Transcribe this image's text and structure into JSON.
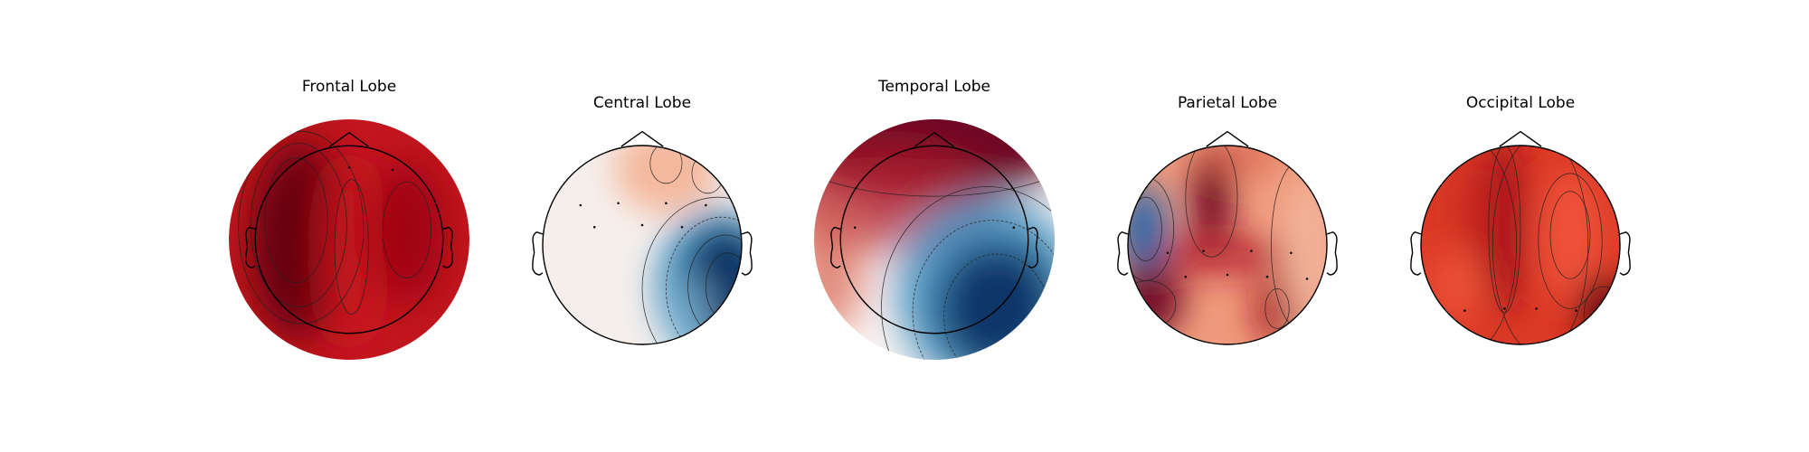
{
  "chart_data": {
    "type": "heatmap",
    "subtype": "scalp-topomap",
    "colormap": "RdBu_r",
    "panels": [
      {
        "title": "Frontal Lobe",
        "colors": {
          "base": "#b2182b",
          "bg": "#c2161f"
        },
        "blobs": [
          {
            "cx": 0.3,
            "cy": 0.5,
            "rx": 0.2,
            "ry": 0.42,
            "color": "#67000d",
            "opacity": 0.95
          },
          {
            "cx": 0.5,
            "cy": 0.55,
            "rx": 0.12,
            "ry": 0.4,
            "color": "#cb181d",
            "opacity": 0.9
          },
          {
            "cx": 0.74,
            "cy": 0.47,
            "rx": 0.16,
            "ry": 0.3,
            "color": "#99000d",
            "opacity": 0.85
          },
          {
            "cx": 0.22,
            "cy": 0.55,
            "rx": 0.12,
            "ry": 0.3,
            "color": "#5a0009",
            "opacity": 0.7
          }
        ],
        "contours": [
          {
            "cx": 0.3,
            "cy": 0.45,
            "rx": 0.26,
            "ry": 0.4
          },
          {
            "cx": 0.29,
            "cy": 0.44,
            "rx": 0.2,
            "ry": 0.34
          },
          {
            "cx": 0.28,
            "cy": 0.42,
            "rx": 0.13,
            "ry": 0.26
          },
          {
            "cx": 0.51,
            "cy": 0.53,
            "rx": 0.07,
            "ry": 0.28
          },
          {
            "cx": 0.74,
            "cy": 0.46,
            "rx": 0.1,
            "ry": 0.2
          }
        ],
        "sensors": [
          [
            0.5,
            0.2
          ],
          [
            0.68,
            0.21
          ]
        ],
        "head_scale": 0.78
      },
      {
        "title": "Central Lobe",
        "colors": {
          "base": "#f5efec",
          "bg": "#f5efec"
        },
        "blobs": [
          {
            "cx": 0.62,
            "cy": 0.12,
            "rx": 0.26,
            "ry": 0.22,
            "color": "#f4a582",
            "opacity": 0.75
          },
          {
            "cx": 0.88,
            "cy": 0.72,
            "rx": 0.32,
            "ry": 0.4,
            "color": "#4393c3",
            "opacity": 0.9
          },
          {
            "cx": 0.92,
            "cy": 0.7,
            "rx": 0.22,
            "ry": 0.3,
            "color": "#053061",
            "opacity": 0.95
          },
          {
            "cx": 0.75,
            "cy": 0.85,
            "rx": 0.12,
            "ry": 0.2,
            "color": "#92c5de",
            "opacity": 0.6
          }
        ],
        "contours": [
          {
            "cx": 0.88,
            "cy": 0.72,
            "rx": 0.38,
            "ry": 0.46
          },
          {
            "cx": 0.9,
            "cy": 0.72,
            "rx": 0.28,
            "ry": 0.36,
            "dashed": true
          },
          {
            "cx": 0.92,
            "cy": 0.71,
            "rx": 0.19,
            "ry": 0.26
          },
          {
            "cx": 0.93,
            "cy": 0.71,
            "rx": 0.11,
            "ry": 0.17
          },
          {
            "cx": 0.62,
            "cy": 0.09,
            "rx": 0.08,
            "ry": 0.1
          },
          {
            "cx": 0.83,
            "cy": 0.14,
            "rx": 0.08,
            "ry": 0.1
          }
        ],
        "sensors": [
          [
            0.19,
            0.3
          ],
          [
            0.38,
            0.29
          ],
          [
            0.62,
            0.29
          ],
          [
            0.82,
            0.3
          ],
          [
            0.26,
            0.41
          ],
          [
            0.5,
            0.4
          ],
          [
            0.7,
            0.41
          ]
        ],
        "head_scale": 1.0
      },
      {
        "title": "Temporal Lobe",
        "colors": {
          "base": "#f7f7f7",
          "bg": "#fbf5f2"
        },
        "blobs": [
          {
            "cx": 0.5,
            "cy": 0.05,
            "rx": 0.62,
            "ry": 0.28,
            "color": "#67001f",
            "opacity": 0.97
          },
          {
            "cx": 0.3,
            "cy": 0.32,
            "rx": 0.45,
            "ry": 0.22,
            "color": "#b2182b",
            "opacity": 0.75
          },
          {
            "cx": 0.05,
            "cy": 0.62,
            "rx": 0.16,
            "ry": 0.28,
            "color": "#d6604d",
            "opacity": 0.7
          },
          {
            "cx": 0.72,
            "cy": 0.72,
            "rx": 0.38,
            "ry": 0.4,
            "color": "#4393c3",
            "opacity": 0.9
          },
          {
            "cx": 0.76,
            "cy": 0.78,
            "rx": 0.26,
            "ry": 0.28,
            "color": "#053061",
            "opacity": 0.92
          }
        ],
        "contours": [
          {
            "cx": 0.72,
            "cy": 0.78,
            "rx": 0.44,
            "ry": 0.5
          },
          {
            "cx": 0.74,
            "cy": 0.8,
            "rx": 0.33,
            "ry": 0.38,
            "dashed": true
          },
          {
            "cx": 0.76,
            "cy": 0.82,
            "rx": 0.22,
            "ry": 0.26,
            "dashed": true
          },
          {
            "cx": 0.5,
            "cy": 0.02,
            "rx": 0.72,
            "ry": 0.3
          }
        ],
        "sensors": [
          [
            0.17,
            0.45
          ],
          [
            0.83,
            0.45
          ]
        ],
        "head_scale": 0.78
      },
      {
        "title": "Parietal Lobe",
        "colors": {
          "base": "#e58267",
          "bg": "#ef9a7d"
        },
        "blobs": [
          {
            "cx": 0.42,
            "cy": 0.25,
            "rx": 0.1,
            "ry": 0.26,
            "color": "#67001f",
            "opacity": 0.95
          },
          {
            "cx": 0.42,
            "cy": 0.55,
            "rx": 0.42,
            "ry": 0.1,
            "color": "#b2182b",
            "opacity": 0.8
          },
          {
            "cx": 0.08,
            "cy": 0.42,
            "rx": 0.12,
            "ry": 0.22,
            "color": "#2166ac",
            "opacity": 0.95
          },
          {
            "cx": 0.1,
            "cy": 0.78,
            "rx": 0.18,
            "ry": 0.18,
            "color": "#67001f",
            "opacity": 0.9
          },
          {
            "cx": 0.75,
            "cy": 0.82,
            "rx": 0.12,
            "ry": 0.18,
            "color": "#a50f15",
            "opacity": 0.85
          },
          {
            "cx": 0.9,
            "cy": 0.55,
            "rx": 0.12,
            "ry": 0.4,
            "color": "#f4c2a8",
            "opacity": 0.7
          },
          {
            "cx": 0.55,
            "cy": 0.05,
            "rx": 0.22,
            "ry": 0.1,
            "color": "#d6604d",
            "opacity": 0.7
          }
        ],
        "contours": [
          {
            "cx": 0.42,
            "cy": 0.26,
            "rx": 0.13,
            "ry": 0.3
          },
          {
            "cx": 0.09,
            "cy": 0.42,
            "rx": 0.14,
            "ry": 0.26
          },
          {
            "cx": 0.09,
            "cy": 0.42,
            "rx": 0.08,
            "ry": 0.16
          },
          {
            "cx": 0.75,
            "cy": 0.82,
            "rx": 0.06,
            "ry": 0.1
          },
          {
            "cx": 0.1,
            "cy": 0.8,
            "rx": 0.14,
            "ry": 0.12
          },
          {
            "cx": 0.86,
            "cy": 0.5,
            "rx": 0.14,
            "ry": 0.42
          }
        ],
        "sensors": [
          [
            0.2,
            0.54
          ],
          [
            0.38,
            0.53
          ],
          [
            0.62,
            0.53
          ],
          [
            0.82,
            0.54
          ],
          [
            0.29,
            0.66
          ],
          [
            0.5,
            0.65
          ],
          [
            0.7,
            0.66
          ],
          [
            0.9,
            0.67
          ]
        ],
        "head_scale": 1.0
      },
      {
        "title": "Occipital Lobe",
        "colors": {
          "base": "#d6311f",
          "bg": "#dc3a26"
        },
        "blobs": [
          {
            "cx": 0.42,
            "cy": 0.4,
            "rx": 0.12,
            "ry": 0.45,
            "color": "#a50f15",
            "opacity": 0.85
          },
          {
            "cx": 0.75,
            "cy": 0.45,
            "rx": 0.16,
            "ry": 0.32,
            "color": "#f4593f",
            "opacity": 0.8
          },
          {
            "cx": 0.92,
            "cy": 0.82,
            "rx": 0.14,
            "ry": 0.18,
            "color": "#67000d",
            "opacity": 0.9
          },
          {
            "cx": 0.18,
            "cy": 0.7,
            "rx": 0.14,
            "ry": 0.18,
            "color": "#ef5a3b",
            "opacity": 0.7
          },
          {
            "cx": 0.25,
            "cy": 0.3,
            "rx": 0.1,
            "ry": 0.25,
            "color": "#c0241a",
            "opacity": 0.6
          }
        ],
        "contours": [
          {
            "cx": 0.75,
            "cy": 0.45,
            "rx": 0.1,
            "ry": 0.22
          },
          {
            "cx": 0.75,
            "cy": 0.48,
            "rx": 0.16,
            "ry": 0.34
          },
          {
            "cx": 0.42,
            "cy": 0.42,
            "rx": 0.08,
            "ry": 0.42
          },
          {
            "cx": 0.22,
            "cy": 0.5,
            "rx": 0.26,
            "ry": 0.55
          },
          {
            "cx": 0.92,
            "cy": 0.84,
            "rx": 0.1,
            "ry": 0.13
          },
          {
            "cx": 0.6,
            "cy": 0.5,
            "rx": 0.24,
            "ry": 0.55
          }
        ],
        "sensors": [
          [
            0.22,
            0.83
          ],
          [
            0.42,
            0.82
          ],
          [
            0.58,
            0.82
          ],
          [
            0.78,
            0.83
          ]
        ],
        "head_scale": 1.0
      }
    ]
  }
}
